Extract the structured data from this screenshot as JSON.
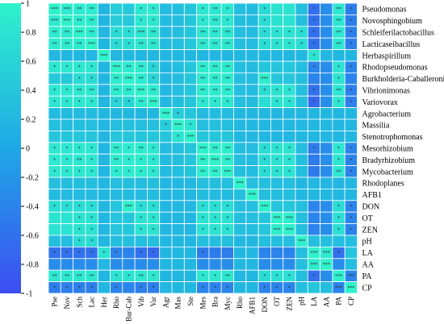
{
  "chart_data": {
    "type": "heatmap",
    "title": "",
    "colors": {
      "negative": "#3d4df2",
      "mid": "#1fa8e6",
      "positive": "#2ff2cc",
      "gridline": "#ffffff"
    },
    "colorbar": {
      "min": -1,
      "max": 1,
      "ticks": [
        1,
        0.8,
        0.6,
        0.4,
        0.2,
        0,
        -0.2,
        -0.4,
        -0.6,
        -0.8,
        -1
      ],
      "tick_labels": [
        "1",
        "0.8",
        "0.6",
        "0.4",
        "0.2",
        "0",
        "-0.2",
        "-0.4",
        "-0.6",
        "-0.8",
        "-1"
      ]
    },
    "rows": [
      "Pseudomonas",
      "Novosphingobium",
      "Schleiferilactobacillus",
      "Lacticaseibacillus",
      "Herbaspirillum",
      "Rhodopseudomonas",
      "Burkholderia-Caballeronia",
      "Vibrionimonas",
      "Variovorax",
      "Agrobacterium",
      "Massilia",
      "Stenotrophomonas",
      "Mesorhizobium",
      "Bradyrhizobium",
      "Mycobacterium",
      "Rhodoplanes",
      "AFB1",
      "DON",
      "OT",
      "ZEN",
      "pH",
      "LA",
      "AA",
      "PA",
      "CP"
    ],
    "cols": [
      "Pse",
      "Nov",
      "Sch",
      "Lac",
      "Her",
      "Rho",
      "Bur-Cab",
      "Vib",
      "Var",
      "Agr",
      "Mas",
      "Ste",
      "Mes",
      "Bra",
      "Myc",
      "Rho",
      "AFB1",
      "DON",
      "OT",
      "ZEN",
      "pH",
      "LA",
      "AA",
      "PA",
      "CP"
    ],
    "values": [
      [
        1.0,
        0.9,
        0.9,
        0.9,
        0.2,
        0.5,
        0.45,
        0.85,
        0.85,
        0.25,
        0.3,
        0.4,
        0.85,
        0.85,
        0.85,
        0.3,
        0.25,
        0.7,
        0.8,
        0.8,
        0.3,
        -0.6,
        -0.3,
        0.85,
        -0.45
      ],
      [
        0.9,
        1.0,
        0.9,
        0.9,
        0.2,
        0.5,
        0.45,
        0.85,
        0.85,
        0.25,
        0.3,
        0.4,
        0.85,
        0.85,
        0.85,
        0.3,
        0.25,
        0.7,
        0.8,
        0.8,
        0.3,
        -0.6,
        -0.3,
        0.85,
        -0.45
      ],
      [
        0.9,
        0.9,
        1.0,
        0.9,
        0.2,
        0.7,
        0.7,
        0.85,
        0.85,
        0.25,
        0.3,
        0.4,
        0.85,
        0.85,
        0.85,
        0.3,
        0.25,
        0.7,
        0.8,
        0.8,
        0.7,
        -0.6,
        -0.3,
        0.85,
        -0.45
      ],
      [
        0.9,
        0.9,
        0.9,
        1.0,
        0.2,
        0.7,
        0.7,
        0.85,
        0.85,
        0.25,
        0.3,
        0.4,
        0.85,
        0.85,
        0.85,
        0.3,
        0.25,
        0.7,
        0.8,
        0.8,
        0.7,
        -0.6,
        -0.3,
        0.85,
        -0.45
      ],
      [
        0.2,
        0.2,
        0.2,
        0.2,
        1.0,
        0.2,
        0.2,
        0.2,
        0.2,
        0.2,
        0.2,
        0.2,
        0.2,
        0.2,
        0.2,
        0.2,
        0.2,
        0.2,
        0.2,
        0.2,
        0.2,
        0.8,
        0.2,
        0.2,
        0.2
      ],
      [
        0.85,
        0.85,
        0.85,
        0.85,
        0.2,
        1.0,
        0.9,
        0.9,
        0.6,
        0.2,
        0.3,
        0.4,
        0.9,
        0.9,
        0.9,
        0.3,
        0.25,
        0.4,
        0.4,
        0.4,
        0.3,
        -0.4,
        -0.3,
        0.8,
        -0.4
      ],
      [
        0.45,
        0.45,
        0.7,
        0.7,
        0.2,
        0.9,
        1.0,
        0.9,
        0.6,
        0.2,
        0.3,
        0.4,
        0.9,
        0.9,
        0.9,
        0.3,
        0.25,
        0.95,
        0.4,
        0.4,
        0.3,
        -0.4,
        -0.3,
        0.8,
        -0.4
      ],
      [
        0.85,
        0.85,
        0.85,
        0.85,
        0.2,
        0.9,
        0.9,
        1.0,
        0.9,
        0.2,
        0.3,
        0.4,
        0.9,
        0.9,
        0.9,
        0.3,
        0.25,
        0.7,
        0.8,
        0.8,
        0.3,
        -0.6,
        -0.3,
        0.85,
        -0.45
      ],
      [
        0.85,
        0.85,
        0.85,
        0.85,
        0.2,
        0.6,
        0.6,
        0.9,
        1.0,
        0.2,
        0.3,
        0.4,
        0.85,
        0.85,
        0.85,
        0.3,
        0.25,
        0.7,
        0.8,
        0.8,
        0.3,
        -0.7,
        -0.3,
        0.85,
        -0.45
      ],
      [
        0.25,
        0.25,
        0.25,
        0.25,
        0.2,
        0.2,
        0.2,
        0.2,
        0.2,
        1.0,
        0.5,
        0.4,
        0.25,
        0.25,
        0.25,
        0.2,
        0.2,
        0.2,
        0.2,
        0.2,
        0.2,
        0.2,
        0.2,
        0.2,
        0.2
      ],
      [
        0.3,
        0.3,
        0.3,
        0.3,
        0.2,
        0.3,
        0.3,
        0.3,
        0.3,
        0.5,
        1.0,
        0.8,
        0.3,
        0.3,
        0.3,
        0.2,
        0.2,
        0.2,
        0.2,
        0.2,
        0.2,
        0.2,
        0.2,
        0.2,
        0.2
      ],
      [
        0.4,
        0.4,
        0.4,
        0.4,
        0.2,
        0.4,
        0.4,
        0.4,
        0.4,
        0.4,
        0.8,
        1.0,
        0.4,
        0.4,
        0.4,
        0.2,
        0.2,
        0.2,
        0.2,
        0.2,
        0.2,
        0.2,
        0.2,
        0.2,
        0.2
      ],
      [
        0.85,
        0.85,
        0.85,
        0.85,
        0.2,
        0.9,
        0.9,
        0.9,
        0.85,
        0.25,
        0.3,
        0.4,
        1.0,
        0.95,
        0.95,
        0.3,
        0.25,
        0.7,
        0.8,
        0.8,
        0.3,
        -0.5,
        -0.3,
        0.85,
        -0.4
      ],
      [
        0.85,
        0.85,
        0.85,
        0.85,
        0.2,
        0.9,
        0.9,
        0.9,
        0.85,
        0.25,
        0.3,
        0.4,
        0.95,
        1.0,
        0.95,
        0.3,
        0.25,
        0.7,
        0.8,
        0.8,
        0.3,
        -0.5,
        -0.3,
        0.85,
        -0.4
      ],
      [
        0.85,
        0.85,
        0.85,
        0.85,
        0.2,
        0.9,
        0.9,
        0.9,
        0.85,
        0.25,
        0.3,
        0.4,
        0.95,
        0.95,
        1.0,
        0.3,
        0.25,
        0.7,
        0.8,
        0.8,
        0.3,
        -0.5,
        -0.3,
        0.85,
        -0.4
      ],
      [
        0.3,
        0.3,
        0.3,
        0.3,
        0.2,
        0.3,
        0.3,
        0.3,
        0.3,
        0.2,
        0.2,
        0.2,
        0.3,
        0.3,
        0.3,
        1.0,
        0.3,
        0.3,
        0.3,
        0.3,
        0.2,
        0.2,
        0.2,
        0.2,
        0.2
      ],
      [
        0.25,
        0.25,
        0.25,
        0.25,
        0.2,
        0.25,
        0.25,
        0.25,
        0.25,
        0.2,
        0.2,
        0.2,
        0.25,
        0.25,
        0.25,
        0.3,
        1.0,
        0.3,
        0.3,
        0.3,
        0.2,
        0.2,
        0.2,
        0.2,
        0.2
      ],
      [
        0.7,
        0.7,
        0.7,
        0.7,
        0.2,
        0.4,
        0.95,
        0.7,
        0.7,
        0.2,
        0.2,
        0.2,
        0.7,
        0.7,
        0.7,
        0.3,
        0.3,
        1.0,
        0.4,
        0.4,
        0.3,
        -0.4,
        -0.3,
        0.7,
        -0.4
      ],
      [
        0.8,
        0.8,
        0.8,
        0.8,
        0.2,
        0.4,
        0.4,
        0.8,
        0.8,
        0.2,
        0.2,
        0.2,
        0.8,
        0.8,
        0.8,
        0.3,
        0.3,
        0.4,
        1.0,
        0.95,
        0.3,
        -0.4,
        -0.3,
        0.75,
        -0.4
      ],
      [
        0.8,
        0.8,
        0.8,
        0.8,
        0.2,
        0.4,
        0.4,
        0.8,
        0.8,
        0.2,
        0.2,
        0.2,
        0.8,
        0.8,
        0.8,
        0.3,
        0.3,
        0.4,
        0.95,
        1.0,
        0.3,
        -0.4,
        -0.3,
        0.75,
        -0.4
      ],
      [
        0.3,
        0.3,
        0.7,
        0.7,
        0.2,
        0.3,
        0.3,
        0.3,
        0.3,
        0.2,
        0.2,
        0.2,
        0.3,
        0.3,
        0.3,
        0.2,
        0.2,
        0.3,
        0.3,
        0.3,
        1.0,
        0.3,
        0.3,
        0.3,
        0.3
      ],
      [
        -0.6,
        -0.6,
        -0.6,
        -0.6,
        0.8,
        -0.4,
        -0.4,
        -0.6,
        -0.7,
        0.2,
        0.2,
        0.2,
        -0.5,
        -0.5,
        -0.5,
        0.2,
        0.2,
        -0.4,
        -0.4,
        -0.4,
        0.3,
        1.0,
        0.9,
        -0.6,
        0.4
      ],
      [
        -0.3,
        -0.3,
        -0.3,
        -0.3,
        0.2,
        -0.3,
        -0.3,
        -0.3,
        -0.3,
        0.2,
        0.2,
        0.2,
        -0.3,
        -0.3,
        -0.3,
        0.2,
        0.2,
        -0.3,
        -0.3,
        -0.3,
        0.3,
        0.9,
        1.0,
        -0.3,
        0.3
      ],
      [
        0.85,
        0.85,
        0.85,
        0.85,
        0.2,
        0.8,
        0.8,
        0.85,
        0.85,
        0.2,
        0.2,
        0.2,
        0.85,
        0.85,
        0.85,
        0.2,
        0.2,
        0.7,
        0.75,
        0.75,
        0.3,
        -0.6,
        -0.3,
        1.0,
        -0.4
      ],
      [
        -0.45,
        -0.45,
        -0.45,
        -0.45,
        0.2,
        -0.4,
        -0.4,
        -0.45,
        -0.45,
        0.2,
        0.2,
        0.2,
        -0.4,
        -0.4,
        -0.4,
        0.2,
        0.2,
        -0.4,
        -0.4,
        -0.4,
        0.3,
        0.4,
        0.3,
        -0.4,
        1.0
      ]
    ],
    "stars": [
      [
        "***",
        "***",
        "**",
        "**",
        "",
        "",
        "",
        "*",
        "*",
        "",
        "",
        "",
        "*",
        "**",
        "*",
        "",
        "",
        "*",
        "",
        "",
        "",
        "*",
        "",
        "**",
        "*"
      ],
      [
        "***",
        "***",
        "**",
        "**",
        "",
        "",
        "",
        "*",
        "*",
        "",
        "",
        "",
        "*",
        "**",
        "*",
        "",
        "",
        "*",
        "",
        "",
        "",
        "*",
        "",
        "**",
        "*"
      ],
      [
        "**",
        "**",
        "***",
        "**",
        "",
        "*",
        "*",
        "***",
        "**",
        "",
        "",
        "",
        "**",
        "**",
        "**",
        "",
        "",
        "*",
        "*",
        "*",
        "*",
        "*",
        "",
        "**",
        "*"
      ],
      [
        "**",
        "**",
        "**",
        "***",
        "",
        "*",
        "*",
        "**",
        "**",
        "",
        "",
        "",
        "**",
        "**",
        "**",
        "",
        "",
        "*",
        "*",
        "*",
        "*",
        "*",
        "",
        "**",
        "*"
      ],
      [
        "",
        "",
        "",
        "",
        "***",
        "",
        "",
        "",
        "",
        "",
        "",
        "",
        "",
        "",
        "",
        "",
        "",
        "",
        "",
        "",
        "",
        "*",
        "",
        "",
        ""
      ],
      [
        "*",
        "*",
        "*",
        "*",
        "",
        "***",
        "**",
        "**",
        "*",
        "",
        "",
        "",
        "**",
        "**",
        "**",
        "",
        "",
        "",
        "",
        "",
        "",
        "*",
        "",
        "*",
        "*"
      ],
      [
        "",
        "",
        "*",
        "*",
        "",
        "**",
        "***",
        "**",
        "*",
        "",
        "",
        "",
        "**",
        "**",
        "**",
        "",
        "",
        "***",
        "",
        "",
        "",
        "",
        "",
        "*",
        ""
      ],
      [
        "*",
        "*",
        "**",
        "**",
        "",
        "**",
        "**",
        "***",
        "**",
        "",
        "",
        "",
        "**",
        "**",
        "**",
        "",
        "",
        "*",
        "*",
        "*",
        "",
        "*",
        "",
        "**",
        "*"
      ],
      [
        "*",
        "*",
        "*",
        "*",
        "",
        "*",
        "*",
        "**",
        "***",
        "",
        "",
        "",
        "*",
        "*",
        "*",
        "",
        "",
        "",
        "*",
        "*",
        "",
        "*",
        "",
        "*",
        "*"
      ],
      [
        "",
        "",
        "",
        "",
        "",
        "",
        "",
        "",
        "",
        "***",
        "*",
        "",
        "",
        "",
        "",
        "",
        "",
        "",
        "",
        "",
        "",
        "",
        "",
        "",
        ""
      ],
      [
        "",
        "",
        "",
        "",
        "",
        "",
        "",
        "",
        "",
        "*",
        "***",
        "*",
        "",
        "",
        "",
        "",
        "",
        "",
        "",
        "",
        "",
        "",
        "",
        "",
        ""
      ],
      [
        "",
        "",
        "",
        "",
        "",
        "",
        "",
        "",
        "",
        "",
        "*",
        "***",
        "",
        "",
        "",
        "",
        "",
        "",
        "",
        "",
        "",
        "",
        "",
        "",
        ""
      ],
      [
        "*",
        "*",
        "*",
        "*",
        "",
        "**",
        "*",
        "**",
        "*",
        "",
        "",
        "",
        "***",
        "**",
        "**",
        "",
        "",
        "*",
        "*",
        "*",
        "",
        "*",
        "",
        "*",
        "*"
      ],
      [
        "*",
        "*",
        "**",
        "*",
        "",
        "**",
        "*",
        "*",
        "*",
        "",
        "",
        "",
        "**",
        "***",
        "**",
        "",
        "",
        "*",
        "*",
        "*",
        "",
        "",
        "",
        "*",
        "*"
      ],
      [
        "*",
        "*",
        "*",
        "*",
        "",
        "*",
        "*",
        "*",
        "*",
        "",
        "",
        "",
        "**",
        "**",
        "***",
        "",
        "",
        "*",
        "*",
        "*",
        "",
        "",
        "",
        "**",
        "*"
      ],
      [
        "",
        "",
        "",
        "",
        "",
        "",
        "",
        "",
        "",
        "",
        "",
        "",
        "",
        "",
        "",
        "***",
        "",
        "",
        "",
        "",
        "",
        "",
        "",
        "",
        ""
      ],
      [
        "",
        "",
        "",
        "",
        "",
        "",
        "",
        "",
        "",
        "",
        "",
        "",
        "",
        "",
        "",
        "",
        "***",
        "",
        "",
        "",
        "",
        "",
        "",
        "",
        ""
      ],
      [
        "*",
        "*",
        "*",
        "*",
        "",
        "",
        "***",
        "*",
        "*",
        "",
        "",
        "",
        "*",
        "*",
        "*",
        "",
        "",
        "***",
        "",
        "",
        "",
        "",
        "",
        "*",
        "*"
      ],
      [
        "",
        "",
        "*",
        "*",
        "",
        "",
        "",
        "*",
        "*",
        "",
        "",
        "",
        "*",
        "*",
        "*",
        "",
        "",
        "",
        "***",
        "***",
        "",
        "",
        "",
        "*",
        "*"
      ],
      [
        "",
        "",
        "*",
        "*",
        "",
        "",
        "",
        "*",
        "*",
        "",
        "",
        "",
        "*",
        "*",
        "*",
        "",
        "",
        "",
        "***",
        "***",
        "",
        "",
        "",
        "*",
        "*"
      ],
      [
        "",
        "",
        "*",
        "*",
        "",
        "",
        "",
        "",
        "",
        "",
        "",
        "",
        "",
        "",
        "",
        "",
        "",
        "",
        "",
        "",
        "***",
        "",
        "",
        "",
        ""
      ],
      [
        "*",
        "*",
        "*",
        "*",
        "*",
        "*",
        "",
        "*",
        "*",
        "",
        "",
        "",
        "*",
        "",
        "",
        "",
        "",
        "",
        "",
        "",
        "",
        "***",
        "***",
        "*",
        ""
      ],
      [
        "",
        "",
        "",
        "",
        "",
        "",
        "",
        "",
        "",
        "",
        "",
        "",
        "",
        "",
        "",
        "",
        "",
        "",
        "",
        "",
        "",
        "***",
        "***",
        "",
        ""
      ],
      [
        "**",
        "**",
        "**",
        "**",
        "",
        "*",
        "*",
        "**",
        "*",
        "",
        "",
        "",
        "*",
        "*",
        "**",
        "",
        "",
        "*",
        "*",
        "*",
        "",
        "*",
        "",
        "***",
        "***"
      ],
      [
        "*",
        "*",
        "*",
        "*",
        "",
        "*",
        "",
        "*",
        "*",
        "",
        "",
        "",
        "*",
        "*",
        "*",
        "",
        "",
        "*",
        "*",
        "*",
        "",
        "",
        "",
        "***",
        "***"
      ]
    ]
  }
}
